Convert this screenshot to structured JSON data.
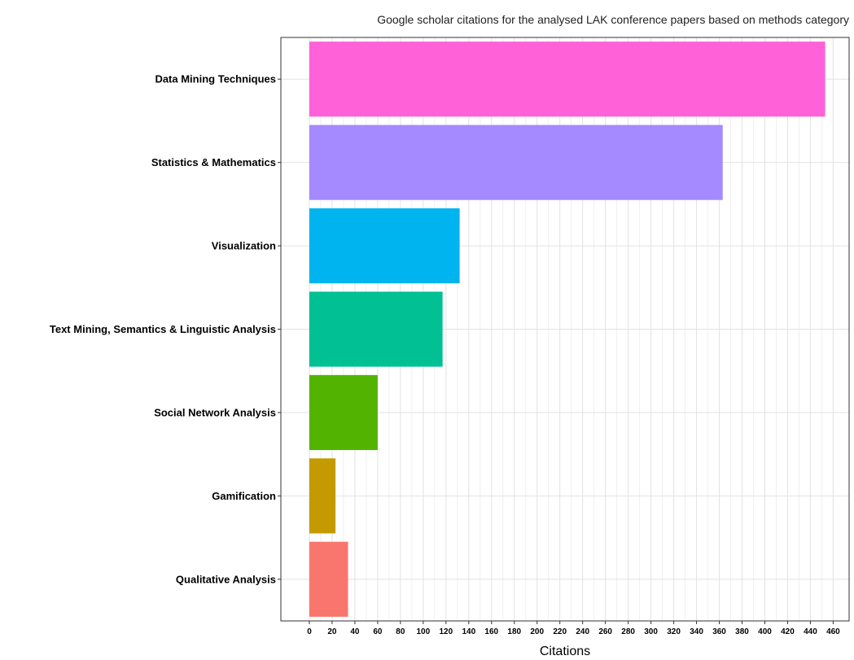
{
  "chart_data": {
    "type": "bar",
    "orientation": "horizontal",
    "title": "Google scholar citations for the analysed LAK conference papers based on methods category",
    "xlabel": "Citations",
    "ylabel": "",
    "xlim": [
      0,
      462
    ],
    "x_ticks": [
      0,
      20,
      40,
      60,
      80,
      100,
      120,
      140,
      160,
      180,
      200,
      220,
      240,
      260,
      280,
      300,
      320,
      340,
      360,
      380,
      400,
      420,
      440,
      460
    ],
    "categories": [
      "Data Mining Techniques",
      "Statistics & Mathematics",
      "Visualization",
      "Text Mining, Semantics & Linguistic Analysis",
      "Social Network Analysis",
      "Gamification",
      "Qualitative Analysis"
    ],
    "values": [
      453,
      363,
      132,
      117,
      60,
      23,
      34
    ],
    "colors": [
      "#FF61D8",
      "#A58AFF",
      "#00B4EF",
      "#00C094",
      "#53B400",
      "#C49A00",
      "#F8766D"
    ],
    "grid": true,
    "legend": "none"
  }
}
